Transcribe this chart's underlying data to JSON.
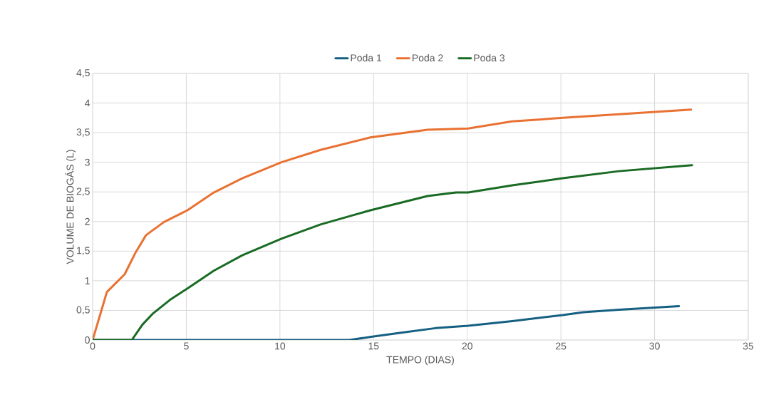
{
  "chart_data": {
    "type": "line",
    "xlabel": "TEMPO (DIAS)",
    "ylabel": "VOLUME DE BIOGÁS (L)",
    "xlim": [
      0,
      35
    ],
    "xticks": [
      0,
      5,
      10,
      15,
      20,
      25,
      30,
      35
    ],
    "ylim": [
      0,
      4.5
    ],
    "yticks": [
      0,
      {
        "value": 0.5,
        "label": "0,5"
      },
      1,
      {
        "value": 1.5,
        "label": "1,5"
      },
      2,
      {
        "value": 2.5,
        "label": "2,5"
      },
      3,
      {
        "value": 3.5,
        "label": "3,5"
      },
      4,
      {
        "value": 4.5,
        "label": "4,5"
      }
    ],
    "grid": true,
    "legend": "top",
    "marker": "none",
    "line_style": "solid",
    "series": [
      {
        "name": "Poda 1",
        "color": "#156082",
        "x": [
          0,
          13.7,
          14.8,
          16.4,
          18.3,
          20.05,
          22.4,
          25.1,
          26.2,
          28.1,
          31.3
        ],
        "values": [
          0,
          0,
          0.05,
          0.12,
          0.2,
          0.24,
          0.32,
          0.42,
          0.47,
          0.51,
          0.57
        ]
      },
      {
        "name": "Poda 2",
        "color": "#e97132",
        "x": [
          0,
          0.76,
          1.71,
          2.28,
          2.85,
          3.8,
          5.06,
          6.47,
          7.99,
          10.08,
          12.17,
          14.83,
          17.88,
          20.05,
          22.4,
          25.1,
          28.1,
          31.95
        ],
        "values": [
          0,
          0.81,
          1.11,
          1.47,
          1.77,
          1.99,
          2.19,
          2.49,
          2.73,
          3.0,
          3.21,
          3.42,
          3.55,
          3.57,
          3.69,
          3.75,
          3.81,
          3.89
        ]
      },
      {
        "name": "Poda 3",
        "color": "#196b24",
        "x": [
          0,
          2.09,
          2.66,
          3.23,
          4.18,
          5.06,
          6.47,
          7.99,
          10.08,
          12.17,
          14.83,
          17.88,
          19.4,
          20.05,
          22.4,
          25.1,
          28.1,
          32.0
        ],
        "values": [
          0,
          0,
          0.26,
          0.45,
          0.69,
          0.87,
          1.17,
          1.43,
          1.71,
          1.95,
          2.19,
          2.43,
          2.49,
          2.49,
          2.61,
          2.73,
          2.85,
          2.95
        ]
      }
    ]
  }
}
